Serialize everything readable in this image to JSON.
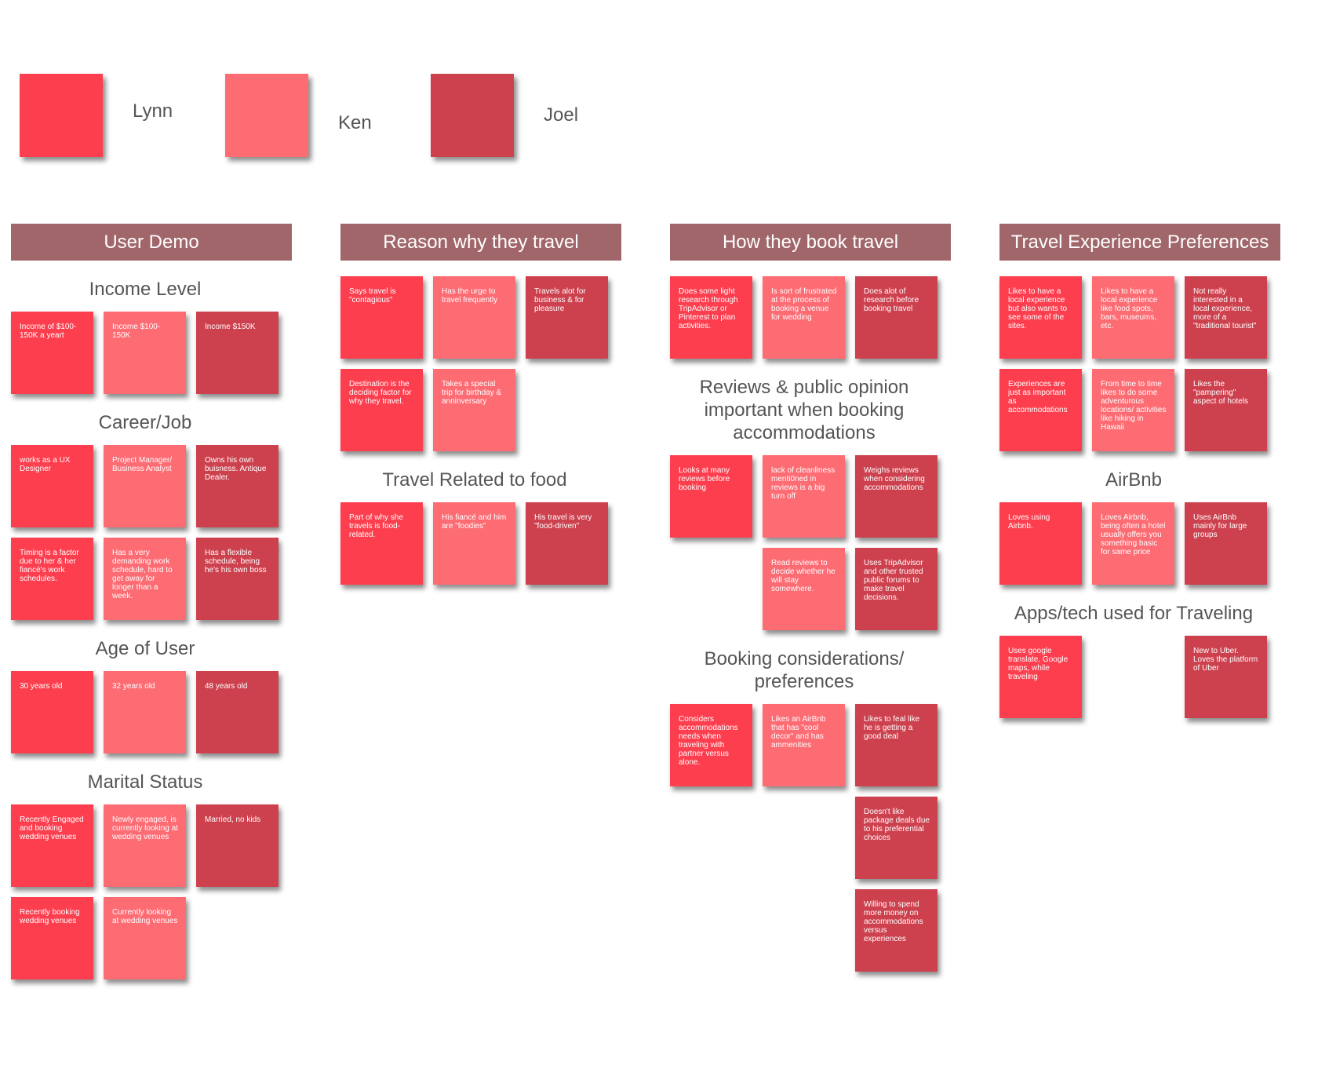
{
  "legend": [
    {
      "name": "Lynn",
      "color": "#fd3e4e"
    },
    {
      "name": "Ken",
      "color": "#fd6b73"
    },
    {
      "name": "Joel",
      "color": "#cd414e"
    }
  ],
  "columns": [
    {
      "header": "User Demo",
      "groups": [
        {
          "title": "Income Level",
          "rows": [
            [
              {
                "text": "Income of $100-150K a yeart",
                "color": "#fd3e4e"
              },
              {
                "text": "Income $100-150K",
                "color": "#fd6b73"
              },
              {
                "text": "Income $150K",
                "color": "#cd414e"
              }
            ]
          ]
        },
        {
          "title": "Career/Job",
          "rows": [
            [
              {
                "text": "works as a UX Designer",
                "color": "#fd3e4e"
              },
              {
                "text": "Project Manager/ Business Analyst",
                "color": "#fd6b73"
              },
              {
                "text": "Owns his own buisness. Antique Dealer.",
                "color": "#cd414e"
              }
            ],
            [
              {
                "text": "Timing is a factor due to her & her fiancé's work schedules.",
                "color": "#fd3e4e"
              },
              {
                "text": "Has a very demanding work schedule, hard to get away for longer than a week.",
                "color": "#fd6b73"
              },
              {
                "text": "Has a flexible schedule, being he's his own boss",
                "color": "#cd414e"
              }
            ]
          ]
        },
        {
          "title": "Age of User",
          "rows": [
            [
              {
                "text": "30 years old",
                "color": "#fd3e4e"
              },
              {
                "text": "32 years old",
                "color": "#fd6b73"
              },
              {
                "text": "48 years old",
                "color": "#cd414e"
              }
            ]
          ]
        },
        {
          "title": "Marital Status",
          "rows": [
            [
              {
                "text": "Recently Engaged and booking wedding venues",
                "color": "#fd3e4e"
              },
              {
                "text": "Newly engaged, is currently looking at wedding venues",
                "color": "#fd6b73"
              },
              {
                "text": "Married, no kids",
                "color": "#cd414e"
              }
            ],
            [
              {
                "text": "Recently booking wedding venues",
                "color": "#fd3e4e"
              },
              {
                "text": "Currently looking at wedding venues",
                "color": "#fd6b73"
              }
            ]
          ]
        }
      ]
    },
    {
      "header": "Reason why they travel",
      "groups": [
        {
          "rows": [
            [
              {
                "text": "Says travel is \"contagious\"",
                "color": "#fd3e4e"
              },
              {
                "text": "Has the urge to travel frequently",
                "color": "#fd6b73"
              },
              {
                "text": "Travels alot for business & for pleasure",
                "color": "#cd414e"
              }
            ],
            [
              {
                "text": "Destination is the deciding factor for why they travel.",
                "color": "#fd3e4e"
              },
              {
                "text": "Takes a special trip for birthday & anninversary",
                "color": "#fd6b73"
              }
            ]
          ]
        },
        {
          "title": "Travel Related to food",
          "rows": [
            [
              {
                "text": "Part of why she travels is food-related.",
                "color": "#fd3e4e"
              },
              {
                "text": "His fiancé and him are \"foodies\"",
                "color": "#fd6b73"
              },
              {
                "text": "His travel is very \"food-driven\"",
                "color": "#cd414e"
              }
            ]
          ]
        }
      ]
    },
    {
      "header": "How they book travel",
      "groups": [
        {
          "rows": [
            [
              {
                "text": "Does some light research through TripAdvisor or Pinterest to plan activities.",
                "color": "#fd3e4e"
              },
              {
                "text": "Is sort of frustrated at the process of booking a venue for wedding",
                "color": "#fd6b73"
              },
              {
                "text": "Does alot of research before booking travel",
                "color": "#cd414e"
              }
            ]
          ]
        },
        {
          "title": "Reviews & public opinion important when booking accommodations",
          "rows": [
            [
              {
                "text": "Looks at many reviews before booking",
                "color": "#fd3e4e"
              },
              {
                "text": "lack of cleanliness menti0ned in reviews is a big turn off",
                "color": "#fd6b73"
              },
              {
                "text": "Weighs reviews when considering accommodations",
                "color": "#cd414e"
              }
            ],
            [
              null,
              {
                "text": "Read reviews to decide whether he will stay somewhere.",
                "color": "#fd6b73"
              },
              {
                "text": "Uses TripAdvisor and other trusted public forums to make travel decisions.",
                "color": "#cd414e"
              }
            ]
          ]
        },
        {
          "title": "Booking considerations/ preferences",
          "rows": [
            [
              {
                "text": "Considers accommodations needs when traveling with partner versus alone.",
                "color": "#fd3e4e"
              },
              {
                "text": "Likes an AirBnb that has \"cool decor\" and has ammenities",
                "color": "#fd6b73"
              },
              {
                "text": "Likes to feal like he is getting a good deal",
                "color": "#cd414e"
              }
            ],
            [
              null,
              null,
              {
                "text": "Doesn't like package deals due to his preferential choices",
                "color": "#cd414e"
              }
            ],
            [
              null,
              null,
              {
                "text": "Willing to spend more money on accommodations versus experiences",
                "color": "#cd414e"
              }
            ]
          ]
        }
      ]
    },
    {
      "header": "Travel Experience Preferences",
      "groups": [
        {
          "rows": [
            [
              {
                "text": "Likes to have a local experience but also wants to see some of the sites.",
                "color": "#fd3e4e"
              },
              {
                "text": "Likes to have a local experience like food spots, bars, museums, etc.",
                "color": "#fd6b73"
              },
              {
                "text": "Not really interested in a local experience, more of a \"traditional tourist\"",
                "color": "#cd414e"
              }
            ],
            [
              {
                "text": "Experiences are just as important as accommodations",
                "color": "#fd3e4e"
              },
              {
                "text": "From time to time likes to do some adventurous locations/ activities like hiking in Hawaii",
                "color": "#fd6b73"
              },
              {
                "text": "Likes the \"pampering\" aspect of hotels",
                "color": "#cd414e"
              }
            ]
          ]
        },
        {
          "title": "AirBnb",
          "rows": [
            [
              {
                "text": "Loves using Airbnb.",
                "color": "#fd3e4e"
              },
              {
                "text": "Loves Airbnb, being often a hotel usually offers you something basic for same price",
                "color": "#fd6b73"
              },
              {
                "text": "Uses AirBnb mainly for large groups",
                "color": "#cd414e"
              }
            ]
          ]
        },
        {
          "title": "Apps/tech used for Traveling",
          "rows": [
            [
              {
                "text": "Uses google translate, Google maps, while traveling",
                "color": "#fd3e4e"
              },
              null,
              {
                "text": "New to Uber. Loves the platform of Uber",
                "color": "#cd414e"
              }
            ]
          ]
        }
      ]
    }
  ]
}
